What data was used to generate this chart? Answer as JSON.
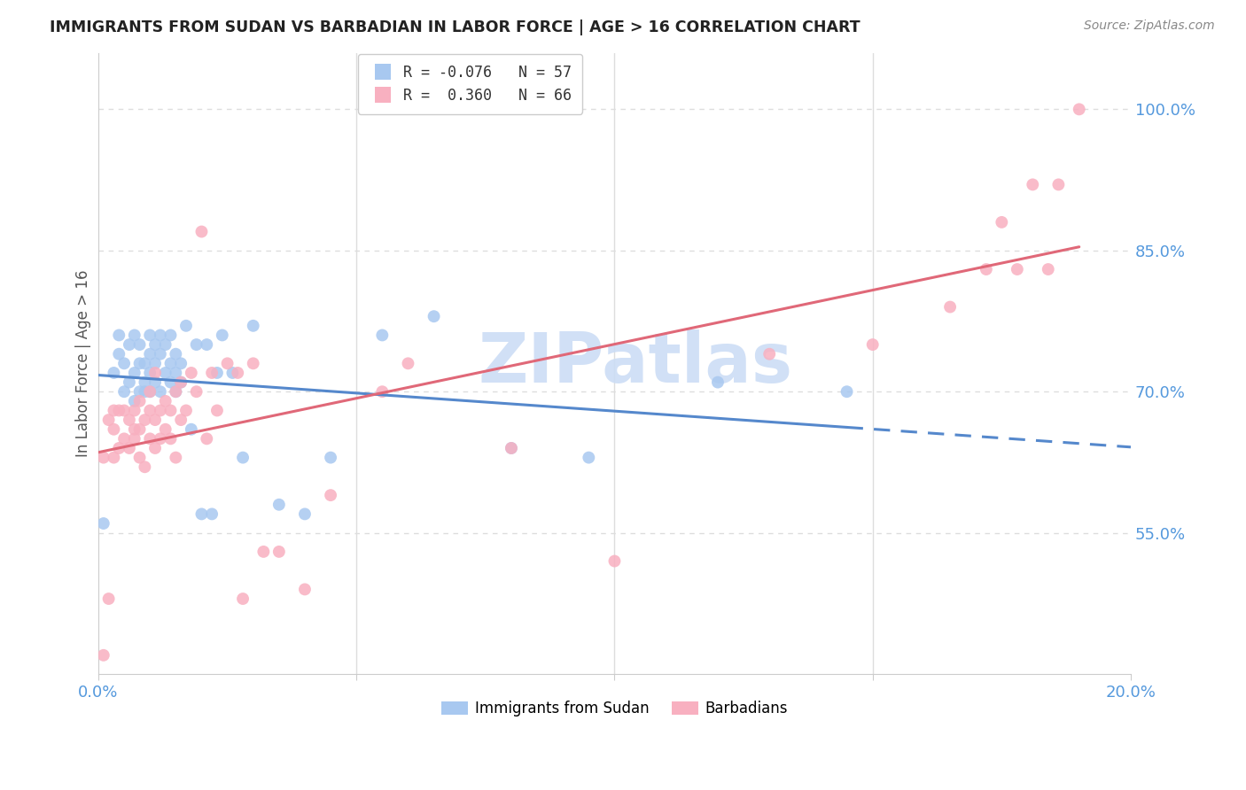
{
  "title": "IMMIGRANTS FROM SUDAN VS BARBADIAN IN LABOR FORCE | AGE > 16 CORRELATION CHART",
  "source": "Source: ZipAtlas.com",
  "ylabel": "In Labor Force | Age > 16",
  "xlim": [
    0.0,
    0.2
  ],
  "ylim": [
    0.4,
    1.06
  ],
  "xtick_positions": [
    0.0,
    0.05,
    0.1,
    0.15,
    0.2
  ],
  "xticklabels": [
    "0.0%",
    "",
    "",
    "",
    "20.0%"
  ],
  "ytick_positions": [
    0.55,
    0.7,
    0.85,
    1.0
  ],
  "ytick_labels": [
    "55.0%",
    "70.0%",
    "85.0%",
    "100.0%"
  ],
  "color_sudan": "#a8c8f0",
  "color_barbadian": "#f8b0c0",
  "color_sudan_line": "#5588cc",
  "color_barbadian_line": "#e06878",
  "sudan_x": [
    0.001,
    0.003,
    0.004,
    0.004,
    0.005,
    0.005,
    0.006,
    0.006,
    0.007,
    0.007,
    0.007,
    0.008,
    0.008,
    0.008,
    0.009,
    0.009,
    0.009,
    0.01,
    0.01,
    0.01,
    0.01,
    0.011,
    0.011,
    0.011,
    0.012,
    0.012,
    0.012,
    0.013,
    0.013,
    0.014,
    0.014,
    0.014,
    0.015,
    0.015,
    0.015,
    0.016,
    0.016,
    0.017,
    0.018,
    0.019,
    0.02,
    0.021,
    0.022,
    0.023,
    0.024,
    0.026,
    0.028,
    0.03,
    0.035,
    0.04,
    0.045,
    0.055,
    0.065,
    0.08,
    0.095,
    0.12,
    0.145
  ],
  "sudan_y": [
    0.56,
    0.72,
    0.74,
    0.76,
    0.7,
    0.73,
    0.71,
    0.75,
    0.69,
    0.72,
    0.76,
    0.7,
    0.73,
    0.75,
    0.71,
    0.73,
    0.7,
    0.72,
    0.74,
    0.76,
    0.7,
    0.73,
    0.75,
    0.71,
    0.74,
    0.7,
    0.76,
    0.72,
    0.75,
    0.73,
    0.76,
    0.71,
    0.74,
    0.7,
    0.72,
    0.73,
    0.71,
    0.77,
    0.66,
    0.75,
    0.57,
    0.75,
    0.57,
    0.72,
    0.76,
    0.72,
    0.63,
    0.77,
    0.58,
    0.57,
    0.63,
    0.76,
    0.78,
    0.64,
    0.63,
    0.71,
    0.7
  ],
  "barbadian_x": [
    0.001,
    0.001,
    0.002,
    0.002,
    0.003,
    0.003,
    0.003,
    0.004,
    0.004,
    0.005,
    0.005,
    0.006,
    0.006,
    0.007,
    0.007,
    0.007,
    0.008,
    0.008,
    0.008,
    0.009,
    0.009,
    0.01,
    0.01,
    0.01,
    0.011,
    0.011,
    0.011,
    0.012,
    0.012,
    0.013,
    0.013,
    0.014,
    0.014,
    0.015,
    0.015,
    0.016,
    0.016,
    0.017,
    0.018,
    0.019,
    0.02,
    0.021,
    0.022,
    0.023,
    0.025,
    0.027,
    0.028,
    0.03,
    0.032,
    0.035,
    0.04,
    0.045,
    0.055,
    0.06,
    0.08,
    0.1,
    0.13,
    0.15,
    0.165,
    0.172,
    0.175,
    0.178,
    0.181,
    0.184,
    0.186,
    0.19
  ],
  "barbadian_y": [
    0.42,
    0.63,
    0.48,
    0.67,
    0.63,
    0.66,
    0.68,
    0.64,
    0.68,
    0.65,
    0.68,
    0.64,
    0.67,
    0.65,
    0.68,
    0.66,
    0.63,
    0.66,
    0.69,
    0.62,
    0.67,
    0.65,
    0.68,
    0.7,
    0.64,
    0.67,
    0.72,
    0.65,
    0.68,
    0.66,
    0.69,
    0.65,
    0.68,
    0.63,
    0.7,
    0.67,
    0.71,
    0.68,
    0.72,
    0.7,
    0.87,
    0.65,
    0.72,
    0.68,
    0.73,
    0.72,
    0.48,
    0.73,
    0.53,
    0.53,
    0.49,
    0.59,
    0.7,
    0.73,
    0.64,
    0.52,
    0.74,
    0.75,
    0.79,
    0.83,
    0.88,
    0.83,
    0.92,
    0.83,
    0.92,
    1.0
  ],
  "watermark_text": "ZIPatlas",
  "watermark_color": "#ccddf5",
  "background_color": "#ffffff",
  "grid_color": "#dddddd",
  "legend_r1": "R = -0.076",
  "legend_n1": "N = 57",
  "legend_r2": "R =  0.360",
  "legend_n2": "N = 66",
  "legend_label1": "Immigrants from Sudan",
  "legend_label2": "Barbadians"
}
